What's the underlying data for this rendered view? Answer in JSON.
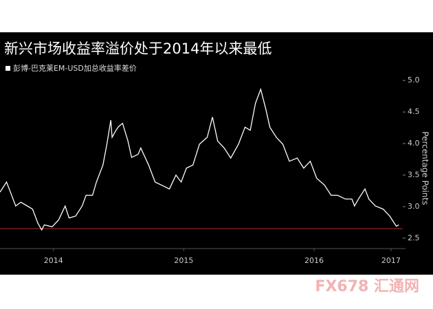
{
  "chart_data": {
    "type": "line",
    "title": "新兴市场收益率溢价处于2014年以来最低",
    "y_label": "Percentage Points",
    "x": [
      2014.09,
      2014.14,
      2014.17,
      2014.21,
      2014.25,
      2014.3,
      2014.34,
      2014.38,
      2014.41,
      2014.43,
      2014.49,
      2014.54,
      2014.59,
      2014.62,
      2014.67,
      2014.72,
      2014.75,
      2014.8,
      2014.83,
      2014.88,
      2014.91,
      2014.94,
      2014.95,
      2014.98,
      2015.0,
      2015.03,
      2015.07,
      2015.1,
      2015.15,
      2015.17,
      2015.23,
      2015.28,
      2015.33,
      2015.39,
      2015.44,
      2015.48,
      2015.52,
      2015.57,
      2015.62,
      2015.68,
      2015.72,
      2015.76,
      2015.81,
      2015.86,
      2015.92,
      2015.97,
      2016.01,
      2016.05,
      2016.09,
      2016.13,
      2016.16,
      2016.21,
      2016.26,
      2016.31,
      2016.37,
      2016.42,
      2016.47,
      2016.52,
      2016.58,
      2016.63,
      2016.68,
      2016.74,
      2016.79,
      2016.81,
      2016.84,
      2016.89,
      2016.92,
      2016.97,
      2017.03,
      2017.08,
      2017.13,
      2017.15
    ],
    "series": [
      {
        "name": "彭博-巴克莱EM-USD加总收益率差价",
        "color": "#ffffff",
        "values": [
          3.23,
          3.39,
          3.23,
          3.01,
          3.07,
          3.01,
          2.96,
          2.74,
          2.63,
          2.71,
          2.68,
          2.79,
          3.01,
          2.82,
          2.85,
          3.01,
          3.18,
          3.18,
          3.39,
          3.66,
          3.99,
          4.37,
          4.1,
          4.21,
          4.27,
          4.32,
          4.05,
          3.78,
          3.83,
          3.93,
          3.66,
          3.39,
          3.34,
          3.28,
          3.5,
          3.39,
          3.61,
          3.66,
          3.99,
          4.1,
          4.42,
          4.04,
          3.93,
          3.77,
          3.99,
          4.26,
          4.21,
          4.64,
          4.86,
          4.54,
          4.26,
          4.1,
          3.99,
          3.72,
          3.77,
          3.61,
          3.72,
          3.45,
          3.34,
          3.18,
          3.18,
          3.12,
          3.12,
          3.01,
          3.12,
          3.28,
          3.12,
          3.01,
          2.96,
          2.85,
          2.69,
          2.71
        ]
      }
    ],
    "xlim": [
      2014.09,
      2017.18
    ],
    "xticks": [
      {
        "value": 2014.5,
        "label": "2014"
      },
      {
        "value": 2015.5,
        "label": "2015"
      },
      {
        "value": 2016.5,
        "label": "2016"
      },
      {
        "value": 2017.09,
        "label": "2017"
      }
    ],
    "ylim": [
      2.4,
      5.1
    ],
    "yticks": [
      2.5,
      {
        "value": 3,
        "label": "3.0"
      },
      3.5,
      {
        "value": 4,
        "label": "4.0"
      },
      4.5,
      {
        "value": 5,
        "label": "5.0"
      }
    ],
    "hline": {
      "value": 2.65,
      "color": "#b03030"
    },
    "watermark": "FX678 汇通网"
  }
}
